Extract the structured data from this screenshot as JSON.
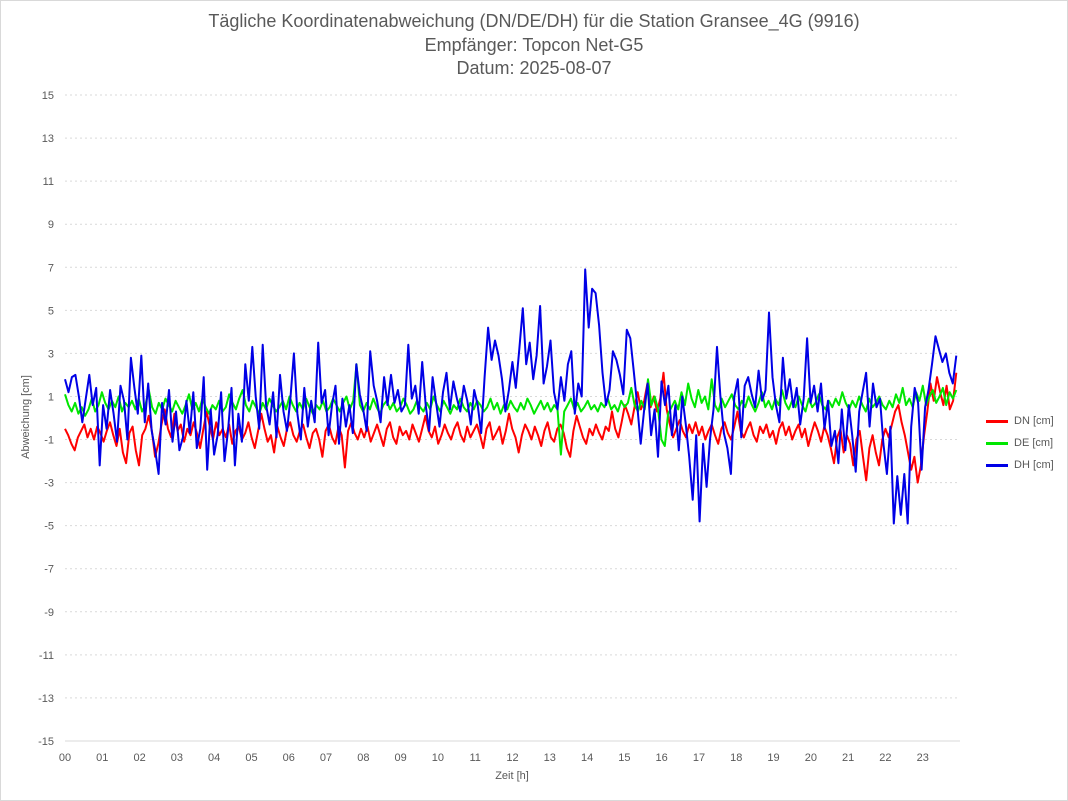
{
  "chart": {
    "title_lines": [
      "Tägliche Koordinatenabweichung (DN/DE/DH) für die Station Gransee_4G (9916)",
      "Empfänger: Topcon Net-G5",
      "Datum: 2025-08-07"
    ],
    "xlabel": "Zeit [h]",
    "ylabel": "Abweichung [cm]"
  },
  "chart_data": {
    "type": "line",
    "title": "Tägliche Koordinatenabweichung (DN/DE/DH) für die Station Gransee_4G (9916)",
    "subtitle": "Empfänger: Topcon Net-G5 / Datum: 2025-08-07",
    "xlabel": "Zeit [h]",
    "ylabel": "Abweichung [cm]",
    "xlim": [
      0,
      24
    ],
    "ylim": [
      -15,
      15
    ],
    "x_tick_labels": [
      "00",
      "01",
      "02",
      "03",
      "04",
      "05",
      "06",
      "07",
      "08",
      "09",
      "10",
      "11",
      "12",
      "13",
      "14",
      "15",
      "16",
      "17",
      "18",
      "19",
      "20",
      "21",
      "22",
      "23"
    ],
    "y_ticks": [
      15,
      13,
      11,
      9,
      7,
      5,
      3,
      1,
      -1,
      -3,
      -5,
      -7,
      -9,
      -11,
      -13,
      -15
    ],
    "grid": true,
    "legend_position": "right",
    "x_step_hours": 0.0833,
    "series": [
      {
        "name": "DN [cm]",
        "color": "#ff0000",
        "values": [
          -0.5,
          -0.8,
          -1.2,
          -1.5,
          -0.9,
          -0.6,
          -0.3,
          -0.9,
          -0.5,
          -1.0,
          -0.4,
          -0.7,
          -1.1,
          -0.6,
          -0.2,
          -0.8,
          -1.3,
          -0.5,
          -1.6,
          -2.1,
          -0.7,
          -0.4,
          -1.5,
          -2.2,
          -0.8,
          -0.5,
          0.1,
          -0.6,
          -1.8,
          -1.2,
          -0.3,
          0.4,
          -0.5,
          -0.9,
          0.2,
          -0.6,
          -0.3,
          -1.1,
          -0.5,
          -0.8,
          -0.2,
          -0.7,
          -1.4,
          -0.5,
          0.3,
          -0.4,
          -1.0,
          -0.2,
          -0.8,
          -0.5,
          -0.9,
          -0.3,
          -1.2,
          -0.6,
          -0.4,
          -1.0,
          -0.7,
          -0.2,
          -0.9,
          -1.4,
          -0.6,
          0.2,
          -0.5,
          -1.1,
          -0.8,
          -1.6,
          -0.4,
          -0.9,
          -1.3,
          -0.5,
          -0.2,
          -0.8,
          -1.1,
          -0.6,
          -0.3,
          -0.9,
          -1.4,
          -0.7,
          -0.5,
          -1.0,
          -1.8,
          -0.6,
          -0.3,
          -0.9,
          -1.2,
          -0.4,
          -0.8,
          -2.3,
          -0.6,
          -0.2,
          -0.7,
          -1.0,
          -0.5,
          -0.9,
          -0.4,
          -1.1,
          -0.7,
          -0.3,
          -0.8,
          -1.3,
          -0.5,
          -0.2,
          -0.9,
          -1.2,
          -0.4,
          -0.8,
          -0.6,
          -1.0,
          -0.3,
          -0.7,
          -1.1,
          -0.5,
          0.1,
          -0.6,
          -0.9,
          -0.4,
          -1.2,
          -0.8,
          -0.3,
          -0.7,
          -1.0,
          -0.5,
          -0.2,
          -0.8,
          -1.1,
          -0.4,
          -0.9,
          -0.6,
          -0.3,
          -0.8,
          -1.4,
          -0.5,
          -0.2,
          -1.0,
          -0.7,
          -0.4,
          -1.2,
          -0.6,
          0.2,
          -0.5,
          -0.9,
          -1.6,
          -0.8,
          -0.3,
          -0.6,
          -1.0,
          -0.4,
          -0.8,
          -1.3,
          -0.6,
          -0.2,
          -0.9,
          -1.1,
          -0.5,
          -0.3,
          -0.7,
          -1.4,
          -1.8,
          -0.6,
          0.1,
          -0.4,
          -0.9,
          -1.2,
          -0.5,
          -0.8,
          -0.3,
          -0.7,
          -1.0,
          -0.4,
          -0.6,
          0.3,
          -0.5,
          -0.9,
          -0.2,
          0.6,
          0.2,
          -0.3,
          0.5,
          1.2,
          0.4,
          0.8,
          1.6,
          0.5,
          1.0,
          0.3,
          0.9,
          2.1,
          0.4,
          -0.3,
          -0.9,
          -0.5,
          -0.1,
          -0.6,
          -0.9,
          -0.3,
          -0.7,
          -0.2,
          -0.8,
          -0.4,
          -1.0,
          -0.6,
          -0.3,
          -0.8,
          -1.2,
          -0.5,
          -0.2,
          -0.7,
          -1.0,
          -0.4,
          0.3,
          -0.6,
          -0.9,
          -0.5,
          -0.2,
          -0.8,
          -1.1,
          -0.4,
          -0.7,
          -0.3,
          -0.9,
          -0.6,
          -1.2,
          -0.5,
          -0.2,
          -0.8,
          -0.4,
          -1.0,
          -0.6,
          -0.3,
          -0.9,
          -0.5,
          -1.3,
          -0.7,
          -0.2,
          -0.6,
          -1.1,
          -0.4,
          -0.8,
          -1.4,
          -2.1,
          -0.9,
          -0.5,
          -1.6,
          -0.8,
          -1.2,
          -2.2,
          -1.0,
          -0.6,
          -1.8,
          -2.9,
          -1.4,
          -0.8,
          -1.6,
          -2.2,
          -1.0,
          -0.5,
          -0.9,
          -0.3,
          0.3,
          0.6,
          -0.2,
          -0.8,
          -1.6,
          -2.4,
          -1.8,
          -3.0,
          -2.2,
          -0.8,
          0.3,
          1.6,
          0.8,
          1.9,
          1.2,
          0.6,
          1.5,
          0.4,
          0.8,
          2.1
        ]
      },
      {
        "name": "DE [cm]",
        "color": "#00e600",
        "values": [
          1.1,
          0.6,
          0.3,
          0.7,
          0.2,
          0.5,
          0.1,
          0.4,
          0.9,
          0.3,
          0.6,
          1.2,
          0.7,
          0.4,
          0.8,
          0.5,
          1.0,
          0.3,
          0.7,
          0.5,
          0.8,
          0.4,
          0.9,
          0.3,
          0.6,
          1.3,
          0.5,
          0.2,
          0.7,
          0.4,
          0.9,
          0.6,
          0.3,
          0.8,
          0.5,
          0.2,
          0.6,
          1.1,
          0.4,
          0.7,
          0.3,
          0.9,
          0.5,
          0.2,
          0.6,
          0.4,
          0.8,
          0.3,
          0.5,
          1.1,
          0.7,
          0.4,
          0.9,
          1.3,
          0.6,
          0.3,
          0.8,
          0.5,
          0.2,
          0.7,
          0.4,
          0.9,
          0.6,
          0.3,
          0.5,
          0.8,
          0.4,
          1.0,
          0.6,
          0.3,
          0.7,
          0.4,
          0.9,
          0.5,
          0.2,
          0.6,
          0.4,
          0.8,
          0.3,
          0.5,
          0.9,
          0.6,
          0.3,
          0.7,
          1.0,
          0.4,
          0.8,
          2.5,
          0.6,
          0.3,
          0.7,
          0.4,
          0.9,
          0.5,
          0.2,
          0.6,
          0.8,
          0.4,
          0.7,
          0.3,
          0.5,
          0.9,
          0.6,
          0.2,
          0.4,
          0.8,
          0.5,
          0.3,
          0.7,
          0.4,
          1.0,
          0.6,
          0.3,
          0.8,
          0.5,
          0.2,
          0.6,
          0.4,
          0.9,
          0.5,
          0.3,
          0.7,
          0.4,
          0.8,
          0.6,
          0.3,
          0.5,
          0.9,
          0.4,
          0.7,
          0.2,
          0.6,
          0.4,
          0.8,
          0.5,
          0.3,
          0.7,
          0.4,
          0.9,
          0.6,
          0.2,
          0.5,
          0.8,
          0.4,
          0.7,
          0.3,
          0.6,
          0.4,
          -1.7,
          0.3,
          0.6,
          0.9,
          0.4,
          0.7,
          0.3,
          0.5,
          0.8,
          0.4,
          0.6,
          0.3,
          0.7,
          0.5,
          0.9,
          0.4,
          0.6,
          0.3,
          0.8,
          0.5,
          0.7,
          1.4,
          0.6,
          0.3,
          0.8,
          0.4,
          1.8,
          0.6,
          1.0,
          0.4,
          -1.0,
          -1.3,
          0.2,
          0.5,
          0.8,
          0.4,
          1.2,
          0.6,
          1.6,
          0.9,
          0.5,
          1.3,
          0.7,
          1.0,
          0.4,
          1.8,
          0.6,
          0.3,
          0.9,
          0.5,
          0.8,
          1.1,
          0.6,
          0.4,
          0.8,
          0.5,
          1.0,
          0.6,
          0.3,
          0.7,
          1.2,
          0.5,
          0.8,
          0.4,
          0.9,
          0.6,
          1.3,
          0.7,
          0.4,
          0.8,
          0.5,
          1.0,
          0.6,
          0.3,
          0.9,
          0.5,
          0.7,
          1.1,
          0.6,
          0.4,
          0.8,
          0.5,
          0.9,
          0.6,
          1.2,
          0.7,
          0.4,
          0.8,
          0.5,
          1.0,
          0.6,
          0.3,
          0.9,
          0.5,
          0.7,
          1.0,
          0.6,
          0.4,
          0.8,
          0.5,
          1.1,
          0.7,
          1.4,
          0.6,
          0.9,
          0.5,
          1.2,
          0.8,
          1.5,
          0.6,
          1.0,
          1.3,
          0.7,
          1.0,
          1.4,
          0.6,
          1.2,
          0.9,
          1.3
        ]
      },
      {
        "name": "DH [cm]",
        "color": "#0000e6",
        "values": [
          1.8,
          1.2,
          1.9,
          2.0,
          1.0,
          -0.2,
          0.9,
          2.0,
          0.6,
          1.4,
          -2.2,
          0.6,
          -0.5,
          1.3,
          0.2,
          -1.1,
          1.5,
          0.8,
          -1.0,
          2.8,
          1.4,
          0.2,
          2.9,
          -0.2,
          1.6,
          -0.6,
          -1.5,
          -2.6,
          0.7,
          -0.3,
          1.3,
          -1.1,
          0.3,
          -1.5,
          -0.9,
          0.8,
          -0.7,
          1.2,
          -1.4,
          -0.5,
          1.9,
          -2.4,
          0.4,
          -1.7,
          -0.8,
          1.2,
          -2.0,
          -0.6,
          1.4,
          -2.2,
          0.2,
          -1.1,
          2.5,
          0.8,
          3.3,
          1.0,
          -0.5,
          3.4,
          0.6,
          -0.3,
          1.2,
          -0.9,
          2.0,
          0.3,
          -0.6,
          0.9,
          3.0,
          0.2,
          -1.0,
          1.4,
          -0.4,
          0.8,
          -0.2,
          3.5,
          0.7,
          1.3,
          -0.8,
          0.6,
          1.5,
          -1.2,
          0.9,
          -0.4,
          0.6,
          -0.7,
          2.5,
          1.1,
          0.4,
          -0.6,
          3.1,
          1.5,
          0.8,
          -0.2,
          1.9,
          0.6,
          2.0,
          0.7,
          1.3,
          0.3,
          0.6,
          3.4,
          0.9,
          1.5,
          0.2,
          2.6,
          0.6,
          -0.6,
          1.9,
          0.7,
          -0.4,
          1.2,
          2.1,
          0.4,
          1.7,
          0.9,
          0.3,
          1.5,
          0.8,
          -0.3,
          1.3,
          0.6,
          -0.7,
          1.9,
          4.2,
          2.7,
          3.6,
          2.9,
          1.8,
          0.3,
          1.3,
          2.6,
          1.4,
          3.2,
          5.1,
          2.5,
          3.5,
          1.8,
          2.9,
          5.2,
          1.6,
          2.4,
          3.6,
          1.2,
          0.4,
          1.9,
          0.8,
          2.5,
          3.1,
          0.2,
          1.6,
          1.0,
          6.9,
          4.2,
          6.0,
          5.8,
          4.3,
          2.1,
          0.6,
          1.3,
          3.1,
          2.7,
          2.0,
          1.1,
          4.1,
          3.7,
          2.2,
          0.6,
          -1.2,
          0.4,
          1.6,
          -0.8,
          0.4,
          -1.8,
          1.7,
          0.6,
          1.5,
          -0.8,
          0.6,
          -1.5,
          1.0,
          -0.3,
          -1.8,
          -3.8,
          -0.8,
          -4.8,
          -1.2,
          -3.2,
          -1.0,
          0.4,
          3.3,
          1.0,
          -0.7,
          -1.4,
          -2.6,
          1.0,
          1.8,
          -0.9,
          1.5,
          1.9,
          1.1,
          0.5,
          2.2,
          0.8,
          1.3,
          4.9,
          1.9,
          0.6,
          -0.2,
          2.8,
          0.9,
          1.8,
          0.5,
          1.4,
          -0.3,
          0.9,
          3.7,
          0.7,
          1.5,
          0.3,
          1.6,
          -0.5,
          0.8,
          -1.3,
          -0.6,
          -2.1,
          0.4,
          -1.5,
          0.6,
          -0.8,
          -2.5,
          0.3,
          1.2,
          2.1,
          -0.4,
          1.6,
          0.5,
          0.9,
          -1.2,
          -2.6,
          -0.4,
          -4.9,
          -2.7,
          -4.5,
          -2.6,
          -4.9,
          -0.4,
          1.4,
          0.7,
          -2.4,
          0.5,
          1.3,
          2.5,
          3.8,
          3.2,
          2.6,
          3.0,
          2.1,
          1.6,
          2.9
        ]
      }
    ]
  }
}
